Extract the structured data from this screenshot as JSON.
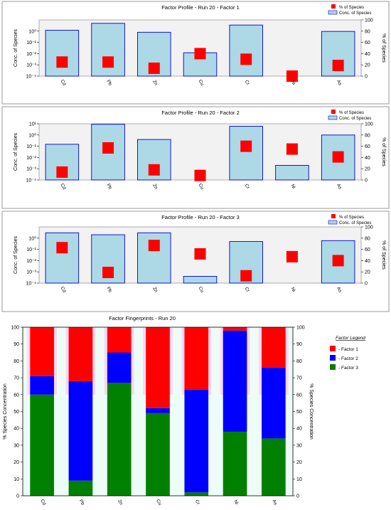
{
  "chart_data": [
    {
      "type": "bar",
      "title": "Factor Profile - Run 20 - Factor 1",
      "ylabel": "Conc. of Species",
      "y2label": "% of Species",
      "yscale": "log",
      "ylim": [
        0.0001,
        10
      ],
      "y2lim": [
        0,
        100
      ],
      "yticks": [
        "10⁻⁴",
        "10⁻³",
        "10⁻²",
        "10⁻¹",
        "10⁰"
      ],
      "y2ticks": [
        "0",
        "20",
        "40",
        "60",
        "80",
        "100"
      ],
      "categories": [
        "Cd",
        "Pb",
        "Zn",
        "Cu",
        "Cr",
        "Ni",
        "As"
      ],
      "legend": {
        "position": "top-right",
        "markers_label": "% of Species",
        "bars_label": "Conc. of Species"
      },
      "series": [
        {
          "name": "Conc. of Species",
          "kind": "bar",
          "values": [
            1.2,
            5.0,
            0.8,
            0.012,
            3.5,
            null,
            0.95
          ]
        },
        {
          "name": "% of Species",
          "kind": "marker",
          "values": [
            25,
            25,
            14,
            40,
            30,
            0,
            19
          ]
        }
      ]
    },
    {
      "type": "bar",
      "title": "Factor Profile - Run 20 - Factor 2",
      "ylabel": "Conc. of Species",
      "y2label": "% of Species",
      "yscale": "log",
      "ylim": [
        0.0001,
        10
      ],
      "y2lim": [
        0,
        100
      ],
      "yticks": [
        "10⁻⁴",
        "10⁻³",
        "10⁻²",
        "10⁻¹",
        "10⁰",
        "10¹"
      ],
      "y2ticks": [
        "0",
        "20",
        "40",
        "60",
        "80",
        "100"
      ],
      "categories": [
        "Cd",
        "Pb",
        "Zn",
        "Cu",
        "Cr",
        "Ni",
        "As"
      ],
      "legend": {
        "position": "top-right",
        "markers_label": "% of Species",
        "bars_label": "Conc. of Species"
      },
      "series": [
        {
          "name": "Conc. of Species",
          "kind": "bar",
          "values": [
            0.15,
            9.0,
            0.4,
            null,
            6.0,
            0.002,
            1.0
          ]
        },
        {
          "name": "% of Species",
          "kind": "marker",
          "values": [
            14,
            57,
            18,
            8,
            60,
            55,
            41
          ]
        }
      ]
    },
    {
      "type": "bar",
      "title": "Factor Profile - Run 20 - Factor 3",
      "ylabel": "Conc. of Species",
      "y2label": "% of Species",
      "yscale": "log",
      "ylim": [
        0.0001,
        10
      ],
      "y2lim": [
        0,
        100
      ],
      "yticks": [
        "10⁻⁴",
        "10⁻³",
        "10⁻²",
        "10⁻¹",
        "10⁰"
      ],
      "y2ticks": [
        "0",
        "20",
        "40",
        "60",
        "80",
        "100"
      ],
      "categories": [
        "Cd",
        "Pb",
        "Zn",
        "Cu",
        "Cr",
        "Ni",
        "As"
      ],
      "legend": {
        "position": "top-right",
        "markers_label": "% of Species",
        "bars_label": "Conc. of Species"
      },
      "series": [
        {
          "name": "Conc. of Species",
          "kind": "bar",
          "values": [
            3.0,
            2.0,
            3.0,
            0.0004,
            0.5,
            null,
            0.6
          ]
        },
        {
          "name": "% of Species",
          "kind": "marker",
          "values": [
            63,
            19,
            67,
            52,
            13,
            47,
            40
          ]
        }
      ]
    },
    {
      "type": "bar",
      "stacked": true,
      "title": "Factor Fingerprints - Run 20",
      "ylabel": "% Species Concentration",
      "y2label": "% Species Concentration",
      "ylim": [
        0,
        100
      ],
      "yticks": [
        "0",
        "10",
        "20",
        "30",
        "40",
        "50",
        "60",
        "70",
        "80",
        "90",
        "100"
      ],
      "categories": [
        "Cd",
        "Pb",
        "Zn",
        "Cu",
        "Cr",
        "Ni",
        "As"
      ],
      "legend": {
        "position": "right",
        "title": "Factor Legend"
      },
      "series": [
        {
          "name": "- Factor 1",
          "color": "#ff0000",
          "values": [
            29,
            32,
            15,
            48,
            37,
            2,
            24
          ]
        },
        {
          "name": "- Factor 2",
          "color": "#0000ff",
          "values": [
            11,
            59,
            18,
            3,
            61,
            60,
            42
          ]
        },
        {
          "name": "- Factor 3",
          "color": "#008000",
          "values": [
            60,
            9,
            67,
            49,
            2,
            38,
            34
          ]
        }
      ]
    }
  ]
}
